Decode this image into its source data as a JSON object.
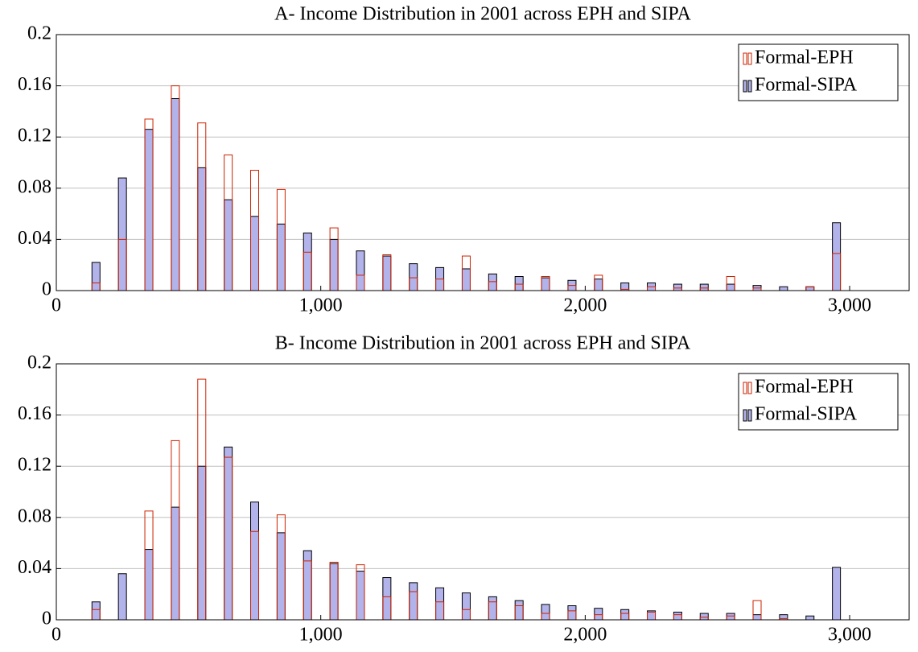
{
  "chart_data": [
    {
      "type": "bar",
      "title": "A- Income Distribution in 2001 across EPH and SIPA",
      "x": [
        150,
        250,
        350,
        450,
        550,
        650,
        750,
        850,
        950,
        1050,
        1150,
        1250,
        1350,
        1450,
        1550,
        1650,
        1750,
        1850,
        1950,
        2050,
        2150,
        2250,
        2350,
        2450,
        2550,
        2650,
        2750,
        2850,
        2950
      ],
      "series": [
        {
          "name": "Formal-EPH",
          "color": "#cc2200",
          "values": [
            0.006,
            0.04,
            0.134,
            0.16,
            0.131,
            0.106,
            0.094,
            0.079,
            0.03,
            0.049,
            0.012,
            0.028,
            0.01,
            0.009,
            0.027,
            0.007,
            0.005,
            0.011,
            0.004,
            0.012,
            0.001,
            0.003,
            0.002,
            0.002,
            0.011,
            0.002,
            0,
            0.003,
            0.029
          ]
        },
        {
          "name": "Formal-SIPA",
          "color": "#b3b3ec",
          "values": [
            0.022,
            0.088,
            0.126,
            0.15,
            0.096,
            0.071,
            0.058,
            0.052,
            0.045,
            0.04,
            0.031,
            0.027,
            0.021,
            0.018,
            0.017,
            0.013,
            0.011,
            0.01,
            0.008,
            0.009,
            0.006,
            0.006,
            0.005,
            0.005,
            0.005,
            0.004,
            0.003,
            0.003,
            0.053
          ]
        }
      ],
      "xlim": [
        0,
        3225
      ],
      "ylim": [
        0,
        0.2
      ],
      "xticks": [
        0,
        {
          "value": 1000,
          "label": "1,000"
        },
        {
          "value": 2000,
          "label": "2,000"
        },
        {
          "value": 3000,
          "label": "3,000"
        }
      ],
      "yticks": [
        0,
        0.04,
        0.08,
        0.12,
        0.16,
        0.2
      ],
      "grid": true,
      "legend": "upper right"
    },
    {
      "type": "bar",
      "title": "B- Income Distribution in 2001 across EPH and SIPA",
      "x": [
        150,
        250,
        350,
        450,
        550,
        650,
        750,
        850,
        950,
        1050,
        1150,
        1250,
        1350,
        1450,
        1550,
        1650,
        1750,
        1850,
        1950,
        2050,
        2150,
        2250,
        2350,
        2450,
        2550,
        2650,
        2750,
        2850,
        2950
      ],
      "series": [
        {
          "name": "Formal-EPH",
          "color": "#cc2200",
          "values": [
            0.008,
            0,
            0.085,
            0.14,
            0.188,
            0.127,
            0.069,
            0.082,
            0.046,
            0.045,
            0.043,
            0.018,
            0.022,
            0.014,
            0.008,
            0.014,
            0.011,
            0.005,
            0.007,
            0.004,
            0.005,
            0.006,
            0.004,
            0.002,
            0.003,
            0.015,
            0.001,
            0,
            0
          ]
        },
        {
          "name": "Formal-SIPA",
          "color": "#b3b3ec",
          "values": [
            0.014,
            0.036,
            0.055,
            0.088,
            0.12,
            0.135,
            0.092,
            0.068,
            0.054,
            0.044,
            0.038,
            0.033,
            0.029,
            0.025,
            0.021,
            0.018,
            0.015,
            0.012,
            0.011,
            0.009,
            0.008,
            0.007,
            0.006,
            0.005,
            0.005,
            0.004,
            0.004,
            0.003,
            0.041
          ]
        }
      ],
      "xlim": [
        0,
        3225
      ],
      "ylim": [
        0,
        0.2
      ],
      "xticks": [
        0,
        {
          "value": 1000,
          "label": "1,000"
        },
        {
          "value": 2000,
          "label": "2,000"
        },
        {
          "value": 3000,
          "label": "3,000"
        }
      ],
      "yticks": [
        0,
        0.04,
        0.08,
        0.12,
        0.16,
        0.2
      ],
      "grid": true,
      "legend": "upper right"
    }
  ]
}
